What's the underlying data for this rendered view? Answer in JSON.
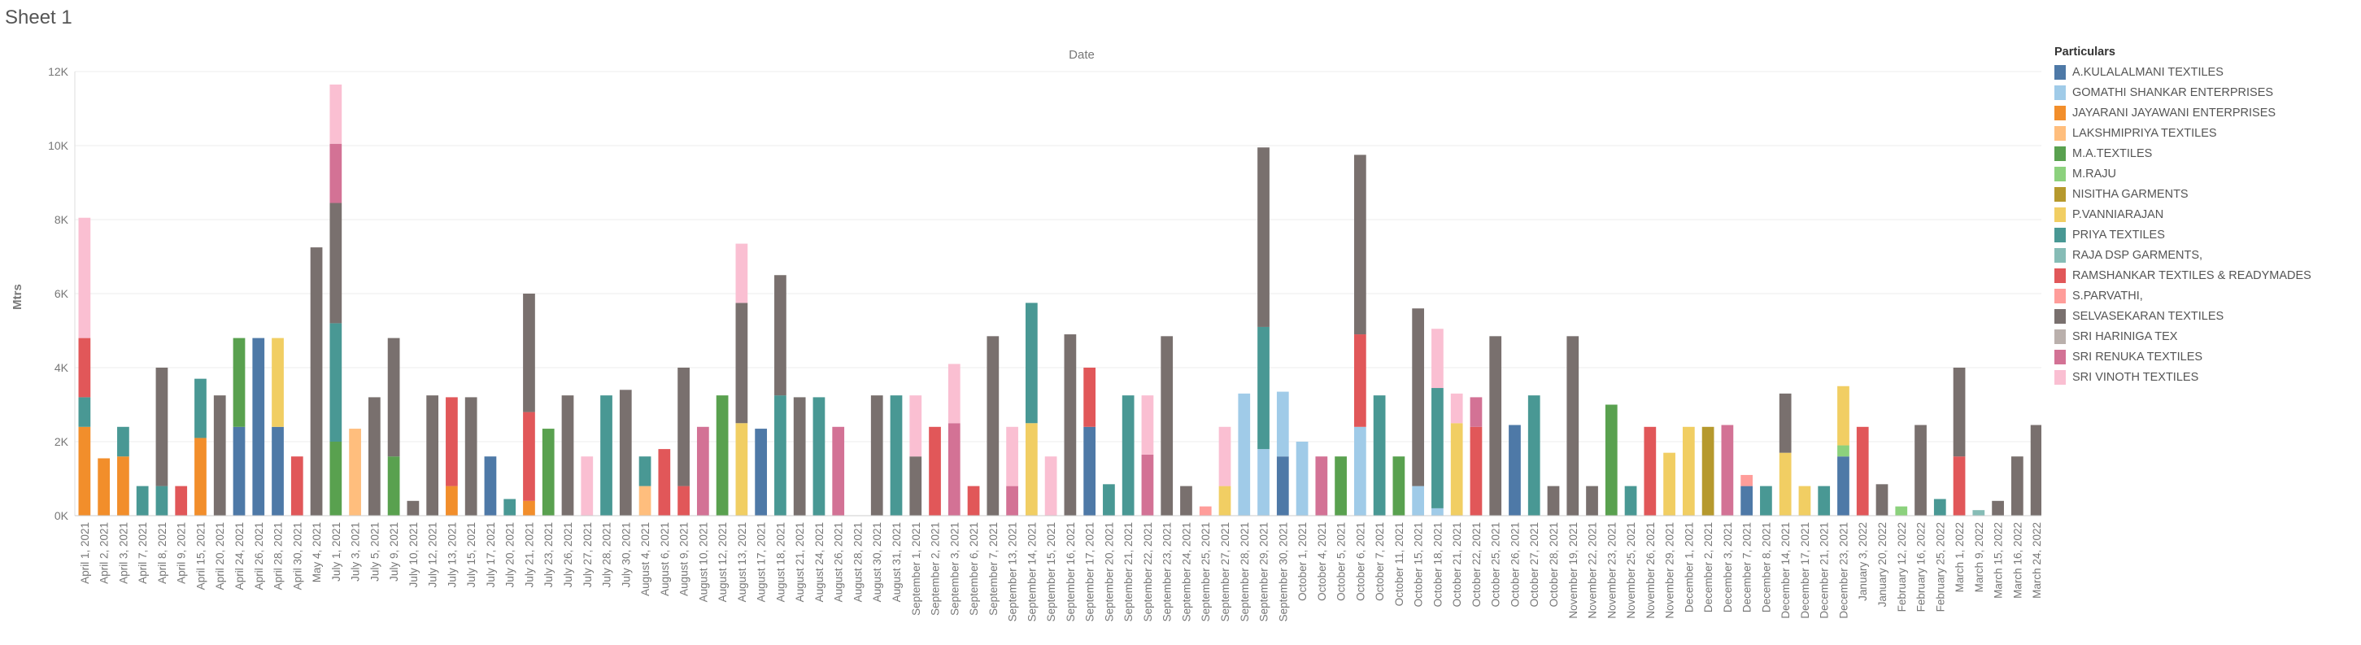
{
  "sheet_title": "Sheet 1",
  "chart_data": {
    "type": "bar",
    "title": "Date",
    "ylabel": "Mtrs",
    "stacked": true,
    "ylim": [
      0,
      12000
    ],
    "y_ticks": [
      0,
      2000,
      4000,
      6000,
      8000,
      10000,
      12000
    ],
    "y_tick_labels": [
      "0K",
      "2K",
      "4K",
      "6K",
      "8K",
      "10K",
      "12K"
    ],
    "grid": true,
    "legend_title": "Particulars",
    "legend_position": "right",
    "categories": [
      "April 1, 2021",
      "April 2, 2021",
      "April 3, 2021",
      "April 7, 2021",
      "April 8, 2021",
      "April 9, 2021",
      "April 15, 2021",
      "April 20, 2021",
      "April 24, 2021",
      "April 26, 2021",
      "April 28, 2021",
      "April 30, 2021",
      "May 4, 2021",
      "July 1, 2021",
      "July 3, 2021",
      "July 5, 2021",
      "July 9, 2021",
      "July 10, 2021",
      "July 12, 2021",
      "July 13, 2021",
      "July 15, 2021",
      "July 17, 2021",
      "July 20, 2021",
      "July 21, 2021",
      "July 23, 2021",
      "July 26, 2021",
      "July 27, 2021",
      "July 28, 2021",
      "July 30, 2021",
      "August 4, 2021",
      "August 6, 2021",
      "August 9, 2021",
      "August 10, 2021",
      "August 12, 2021",
      "August 13, 2021",
      "August 17, 2021",
      "August 18, 2021",
      "August 21, 2021",
      "August 24, 2021",
      "August 26, 2021",
      "August 28, 2021",
      "August 30, 2021",
      "August 31, 2021",
      "September 1, 2021",
      "September 2, 2021",
      "September 3, 2021",
      "September 6, 2021",
      "September 7, 2021",
      "September 13, 2021",
      "September 14, 2021",
      "September 15, 2021",
      "September 16, 2021",
      "September 17, 2021",
      "September 20, 2021",
      "September 21, 2021",
      "September 22, 2021",
      "September 23, 2021",
      "September 24, 2021",
      "September 25, 2021",
      "September 27, 2021",
      "September 28, 2021",
      "September 29, 2021",
      "September 30, 2021",
      "October 1, 2021",
      "October 4, 2021",
      "October 5, 2021",
      "October 6, 2021",
      "October 7, 2021",
      "October 11, 2021",
      "October 15, 2021",
      "October 18, 2021",
      "October 21, 2021",
      "October 22, 2021",
      "October 25, 2021",
      "October 26, 2021",
      "October 27, 2021",
      "October 28, 2021",
      "November 19, 2021",
      "November 22, 2021",
      "November 23, 2021",
      "November 25, 2021",
      "November 26, 2021",
      "November 29, 2021",
      "December 1, 2021",
      "December 2, 2021",
      "December 3, 2021",
      "December 7, 2021",
      "December 8, 2021",
      "December 14, 2021",
      "December 17, 2021",
      "December 21, 2021",
      "December 23, 2021",
      "January 3, 2022",
      "January 20, 2022",
      "February 12, 2022",
      "February 16, 2022",
      "February 25, 2022",
      "March 1, 2022",
      "March 9, 2022",
      "March 15, 2022",
      "March 16, 2022",
      "March 24, 2022"
    ],
    "tick_labels": [
      "April 1, 2021",
      "April 2, 2021",
      "April 3, 2021",
      "April 7, 2021",
      "April 8, 2021",
      "April 9, 2021",
      "April 15, 2021",
      "April 20, 2021",
      "April 24, 2021",
      "April 26, 2021",
      "April 28, 2021",
      "April 30, 2021",
      "May 4, 2021",
      "July 1, 2021",
      "July 3, 2021",
      "July 5, 2021",
      "July 9, 2021",
      "July 10, 2021",
      "July 12, 2021",
      "July 13, 2021",
      "July 15, 2021",
      "July 17, 2021",
      "July 20, 2021",
      "July 21, 2021",
      "July 23, 2021",
      "July 26, 2021",
      "July 27, 2021",
      "July 28, 2021",
      "July 30, 2021",
      "August 4, 2021",
      "August 6, 2021",
      "August 9, 2021",
      "August 10, 2021",
      "August 12, 2021",
      "August 13, 2021",
      "August 17, 2021",
      "August 18, 2021",
      "August 21, 2021",
      "August 24, 2021",
      "August 26, 2021",
      "August 28, 2021",
      "August 30, 2021",
      "August 31, 2021",
      "September 1, 2021",
      "September 2, 2021",
      "September 3, 2021",
      "September 6, 2021",
      "September 7, 2021",
      "September 13, 2021",
      "September 14, 2021",
      "September 15, 2021",
      "September 16, 2021",
      "September 17, 2021",
      "September 20, 2021",
      "September 21, 2021",
      "September 22, 2021",
      "September 23, 2021",
      "September 24, 2021",
      "September 25, 2021",
      "September 27, 2021",
      "September 28, 2021",
      "September 29, 2021",
      "September 30, 2021",
      "October 1, 2021",
      "October 4, 2021",
      "October 5, 2021",
      "October 6, 2021",
      "October 7, 2021",
      "October 11, 2021",
      "October 15, 2021",
      "October 18, 2021",
      "October 21, 2021",
      "October 22, 2021",
      "October 25, 2021",
      "October 26, 2021",
      "October 27, 2021",
      "October 28, 2021",
      "November 19, 2021",
      "November 22, 2021",
      "November 23, 2021",
      "November 25, 2021",
      "November 26, 2021",
      "November 29, 2021",
      "December 1, 2021",
      "December 2, 2021",
      "December 3, 2021",
      "December 7, 2021",
      "December 8, 2021",
      "December 14, 2021",
      "December 17, 2021",
      "December 21, 2021",
      "December 23, 2021",
      "January 3, 2022",
      "January 20, 2022",
      "February 12, 2022",
      "February 16, 2022",
      "February 25, 2022",
      "March 1, 2022",
      "March 9, 2022",
      "March 15, 2022",
      "March 16, 2022",
      "March 24, 2022"
    ],
    "series": [
      {
        "name": "A.KULALALMANI TEXTILES",
        "color": "#4e79a7",
        "values": {
          "April 24, 2021": 2400,
          "April 26, 2021": 4800,
          "April 28, 2021": 2400,
          "July 17, 2021": 1600,
          "August 17, 2021": 2350,
          "September 17, 2021": 2400,
          "September 30, 2021": 1600,
          "October 26, 2021": 2450,
          "December 7, 2021": 800,
          "December 23, 2021": 1600
        }
      },
      {
        "name": "GOMATHI SHANKAR ENTERPRISES",
        "color": "#a0cbe8",
        "values": {
          "September 28, 2021": 3300,
          "September 29, 2021": 1800,
          "September 30, 2021": 1750,
          "October 1, 2021": 2000,
          "October 6, 2021": 2400,
          "October 15, 2021": 800,
          "October 18, 2021": 200
        }
      },
      {
        "name": "JAYARANI JAYAWANI ENTERPRISES",
        "color": "#f28e2b",
        "values": {
          "April 1, 2021": 2400,
          "April 2, 2021": 1550,
          "April 3, 2021": 1600,
          "April 15, 2021": 2100,
          "July 13, 2021": 800,
          "July 21, 2021": 400
        }
      },
      {
        "name": "LAKSHMIPRIYA TEXTILES",
        "color": "#ffbe7d",
        "values": {
          "July 3, 2021": 2350,
          "August 4, 2021": 800
        }
      },
      {
        "name": "M.A.TEXTILES",
        "color": "#59a14f",
        "values": {
          "April 24, 2021": 2400,
          "July 1, 2021": 2000,
          "July 9, 2021": 1600,
          "July 23, 2021": 2350,
          "August 12, 2021": 3250,
          "October 5, 2021": 1600,
          "October 11, 2021": 1600,
          "November 23, 2021": 3000
        }
      },
      {
        "name": "M.RAJU",
        "color": "#8cd17d",
        "values": {
          "December 23, 2021": 300,
          "February 12, 2022": 250
        }
      },
      {
        "name": "NISITHA GARMENTS",
        "color": "#b6992d",
        "values": {
          "December 2, 2021": 2400
        }
      },
      {
        "name": "P.VANNIARAJAN",
        "color": "#f1ce63",
        "values": {
          "April 28, 2021": 2400,
          "August 13, 2021": 2500,
          "September 14, 2021": 2500,
          "September 27, 2021": 800,
          "October 21, 2021": 2500,
          "November 29, 2021": 1700,
          "December 1, 2021": 2400,
          "December 14, 2021": 1700,
          "December 17, 2021": 800,
          "December 23, 2021": 1600
        }
      },
      {
        "name": "PRIYA TEXTILES",
        "color": "#499894",
        "values": {
          "April 1, 2021": 800,
          "April 3, 2021": 800,
          "April 7, 2021": 800,
          "April 8, 2021": 800,
          "April 15, 2021": 1600,
          "July 1, 2021": 3200,
          "July 20, 2021": 450,
          "July 28, 2021": 3250,
          "August 4, 2021": 800,
          "August 18, 2021": 3250,
          "August 24, 2021": 3200,
          "August 31, 2021": 3250,
          "September 14, 2021": 3250,
          "September 20, 2021": 850,
          "September 21, 2021": 3250,
          "September 29, 2021": 3300,
          "October 7, 2021": 3250,
          "October 18, 2021": 3250,
          "October 27, 2021": 3250,
          "November 25, 2021": 800,
          "December 8, 2021": 800,
          "December 21, 2021": 800,
          "February 25, 2022": 450
        }
      },
      {
        "name": "RAJA DSP GARMENTS,",
        "color": "#86bcb6",
        "values": {
          "March 9, 2022": 150
        }
      },
      {
        "name": "RAMSHANKAR TEXTILES & READYMADES",
        "color": "#e15759",
        "values": {
          "April 1, 2021": 1600,
          "April 9, 2021": 800,
          "April 30, 2021": 1600,
          "July 13, 2021": 2400,
          "July 21, 2021": 2400,
          "August 6, 2021": 1800,
          "August 9, 2021": 800,
          "September 2, 2021": 2400,
          "September 6, 2021": 800,
          "September 17, 2021": 1600,
          "October 6, 2021": 2500,
          "October 22, 2021": 2400,
          "November 26, 2021": 2400,
          "January 3, 2022": 2400,
          "March 1, 2022": 1600
        }
      },
      {
        "name": "S.PARVATHI,",
        "color": "#ff9d9a",
        "values": {
          "September 25, 2021": 250,
          "December 7, 2021": 300
        }
      },
      {
        "name": "SELVASEKARAN TEXTILES",
        "color": "#79706e",
        "values": {
          "April 8, 2021": 3200,
          "April 20, 2021": 3250,
          "May 4, 2021": 7250,
          "July 1, 2021": 3250,
          "July 5, 2021": 3200,
          "July 9, 2021": 3200,
          "July 10, 2021": 400,
          "July 12, 2021": 3250,
          "July 15, 2021": 3200,
          "July 21, 2021": 3200,
          "July 26, 2021": 3250,
          "July 30, 2021": 3400,
          "August 9, 2021": 3200,
          "August 13, 2021": 3250,
          "August 18, 2021": 3250,
          "August 21, 2021": 3200,
          "August 30, 2021": 3250,
          "September 1, 2021": 1600,
          "September 7, 2021": 4850,
          "September 16, 2021": 4900,
          "September 23, 2021": 4850,
          "September 24, 2021": 800,
          "September 29, 2021": 4850,
          "October 6, 2021": 4850,
          "October 15, 2021": 4800,
          "October 25, 2021": 4850,
          "October 28, 2021": 800,
          "November 19, 2021": 4850,
          "November 22, 2021": 800,
          "December 14, 2021": 1600,
          "January 20, 2022": 850,
          "February 16, 2022": 2450,
          "March 1, 2022": 2400,
          "March 15, 2022": 400,
          "March 16, 2022": 1600,
          "March 24, 2022": 2450
        }
      },
      {
        "name": "SRI HARINIGA TEX",
        "color": "#bab0ac",
        "values": {
          "September 24, 2021": 0
        }
      },
      {
        "name": "SRI RENUKA TEXTILES",
        "color": "#d37295",
        "values": {
          "July 1, 2021": 1600,
          "August 10, 2021": 2400,
          "August 26, 2021": 2400,
          "September 3, 2021": 2500,
          "September 13, 2021": 800,
          "September 22, 2021": 1650,
          "October 4, 2021": 1600,
          "October 22, 2021": 800,
          "December 3, 2021": 2450
        }
      },
      {
        "name": "SRI VINOTH TEXTILES",
        "color": "#fabfd2",
        "values": {
          "April 1, 2021": 3250,
          "July 1, 2021": 1600,
          "July 21, 2021": 0,
          "July 27, 2021": 1600,
          "August 13, 2021": 1600,
          "September 1, 2021": 1650,
          "September 3, 2021": 1600,
          "September 13, 2021": 1600,
          "September 15, 2021": 1600,
          "September 22, 2021": 1600,
          "September 27, 2021": 1600,
          "October 18, 2021": 1600,
          "October 21, 2021": 800
        }
      }
    ]
  }
}
